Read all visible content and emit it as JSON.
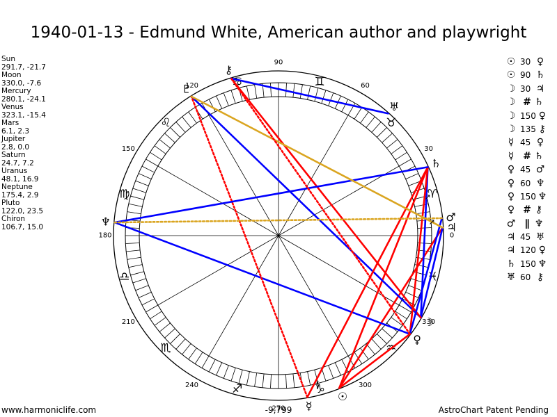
{
  "title": "1940-01-13 - Edmund White, American author and playwright",
  "planets": [
    {
      "name": "Sun",
      "value": "291.7, -21.7"
    },
    {
      "name": "Moon",
      "value": "330.0, -7.6"
    },
    {
      "name": "Mercury",
      "value": "280.1, -24.1"
    },
    {
      "name": "Venus",
      "value": "323.1, -15.4"
    },
    {
      "name": "Mars",
      "value": "6.1, 2.3"
    },
    {
      "name": "Jupiter",
      "value": "2.8, 0.0"
    },
    {
      "name": "Saturn",
      "value": "24.7, 7.2"
    },
    {
      "name": "Uranus",
      "value": "48.1, 16.9"
    },
    {
      "name": "Neptune",
      "value": "175.4, 2.9"
    },
    {
      "name": "Pluto",
      "value": "122.0, 23.5"
    },
    {
      "name": "Chiron",
      "value": "106.7, 15.0"
    }
  ],
  "aspects": [
    {
      "g1": "☉",
      "deg": "30",
      "sym": "",
      "g2": "♀"
    },
    {
      "g1": "☉",
      "deg": "90",
      "sym": "",
      "g2": "♄"
    },
    {
      "g1": "☽",
      "deg": "30",
      "sym": "",
      "g2": "♃"
    },
    {
      "g1": "☽",
      "deg": "",
      "sym": "#",
      "g2": "♄"
    },
    {
      "g1": "☽",
      "deg": "150",
      "sym": "",
      "g2": "♀"
    },
    {
      "g1": "☽",
      "deg": "135",
      "sym": "",
      "g2": "⚷"
    },
    {
      "g1": "☿",
      "deg": "45",
      "sym": "",
      "g2": "♀"
    },
    {
      "g1": "☿",
      "deg": "",
      "sym": "#",
      "g2": "♄"
    },
    {
      "g1": "♀",
      "deg": "45",
      "sym": "",
      "g2": "♂"
    },
    {
      "g1": "♀",
      "deg": "60",
      "sym": "",
      "g2": "♆"
    },
    {
      "g1": "♀",
      "deg": "150",
      "sym": "",
      "g2": "♆"
    },
    {
      "g1": "♀",
      "deg": "",
      "sym": "#",
      "g2": "⚷"
    },
    {
      "g1": "♂",
      "deg": "",
      "sym": "∥",
      "g2": "♆"
    },
    {
      "g1": "♃",
      "deg": "45",
      "sym": "",
      "g2": "♅"
    },
    {
      "g1": "♃",
      "deg": "120",
      "sym": "",
      "g2": "♀"
    },
    {
      "g1": "♄",
      "deg": "150",
      "sym": "",
      "g2": "♆"
    },
    {
      "g1": "♅",
      "deg": "60",
      "sym": "",
      "g2": "⚷"
    }
  ],
  "wheel": {
    "degree_labels": [
      "0",
      "30",
      "60",
      "90",
      "120",
      "150",
      "180",
      "210",
      "240",
      "270",
      "300",
      "330"
    ],
    "zodiac": [
      {
        "glyph": "♈",
        "icon": "aries-icon"
      },
      {
        "glyph": "♉",
        "icon": "taurus-icon"
      },
      {
        "glyph": "♊",
        "icon": "gemini-icon"
      },
      {
        "glyph": "♋",
        "icon": "cancer-icon"
      },
      {
        "glyph": "♌",
        "icon": "leo-icon"
      },
      {
        "glyph": "♍",
        "icon": "virgo-icon"
      },
      {
        "glyph": "♎",
        "icon": "libra-icon"
      },
      {
        "glyph": "♏",
        "icon": "scorpio-icon"
      },
      {
        "glyph": "♐",
        "icon": "sagittarius-icon"
      },
      {
        "glyph": "♑",
        "icon": "capricorn-icon"
      },
      {
        "glyph": "♒",
        "icon": "aquarius-icon"
      },
      {
        "glyph": "♓",
        "icon": "pisces-icon"
      }
    ],
    "bodies": [
      {
        "glyph": "☉",
        "lon": 291.7,
        "icon": "sun-icon"
      },
      {
        "glyph": "☽",
        "lon": 330.0,
        "icon": "moon-icon"
      },
      {
        "glyph": "☿",
        "lon": 280.1,
        "icon": "mercury-icon"
      },
      {
        "glyph": "♀",
        "lon": 323.1,
        "icon": "venus-icon"
      },
      {
        "glyph": "♂",
        "lon": 6.1,
        "icon": "mars-icon"
      },
      {
        "glyph": "♃",
        "lon": 2.8,
        "icon": "jupiter-icon"
      },
      {
        "glyph": "♄",
        "lon": 24.7,
        "icon": "saturn-icon"
      },
      {
        "glyph": "♅",
        "lon": 48.1,
        "icon": "uranus-icon"
      },
      {
        "glyph": "♆",
        "lon": 175.4,
        "icon": "neptune-icon"
      },
      {
        "glyph": "♇",
        "lon": 122.0,
        "icon": "pluto-icon"
      },
      {
        "glyph": "⚷",
        "lon": 106.7,
        "icon": "chiron-icon"
      }
    ],
    "axis_glyphs": [
      {
        "glyph": "↗",
        "lon": 5.0,
        "icon": "ascendant-icon"
      },
      {
        "glyph": "↗",
        "lon": 14.5,
        "icon": "node-icon"
      },
      {
        "glyph": "⚸",
        "lon": 285.0,
        "icon": "lilith-icon"
      }
    ],
    "center_label": "-9,799",
    "colors": {
      "red": "#ff0000",
      "blue": "#0000ff",
      "gold": "#daa520"
    },
    "aspect_lines": [
      {
        "from": 291.7,
        "to": 24.7,
        "color": "red",
        "style": "solid"
      },
      {
        "from": 291.7,
        "to": 2.8,
        "color": "red",
        "style": "solid"
      },
      {
        "from": 330.0,
        "to": 2.8,
        "color": "blue",
        "style": "solid"
      },
      {
        "from": 330.0,
        "to": 24.7,
        "color": "blue",
        "style": "solid"
      },
      {
        "from": 330.0,
        "to": 122.0,
        "color": "blue",
        "style": "solid"
      },
      {
        "from": 330.0,
        "to": 106.7,
        "color": "red",
        "style": "solid"
      },
      {
        "from": 323.1,
        "to": 175.4,
        "color": "blue",
        "style": "solid"
      },
      {
        "from": 323.1,
        "to": 24.7,
        "color": "red",
        "style": "solid"
      },
      {
        "from": 323.1,
        "to": 6.1,
        "color": "blue",
        "style": "solid"
      },
      {
        "from": 323.1,
        "to": 291.7,
        "color": "red",
        "style": "solid"
      },
      {
        "from": 280.1,
        "to": 24.7,
        "color": "red",
        "style": "solid"
      },
      {
        "from": 280.1,
        "to": 122.0,
        "color": "red",
        "style": "dotted"
      },
      {
        "from": 24.7,
        "to": 175.4,
        "color": "blue",
        "style": "solid"
      },
      {
        "from": 48.1,
        "to": 106.7,
        "color": "blue",
        "style": "solid"
      },
      {
        "from": 122.0,
        "to": 2.8,
        "color": "gold",
        "style": "solid"
      },
      {
        "from": 175.4,
        "to": 6.1,
        "color": "gold",
        "style": "dotted"
      },
      {
        "from": 323.1,
        "to": 106.7,
        "color": "red",
        "style": "dotted"
      }
    ]
  },
  "footer": {
    "left": "www.harmoniclife.com",
    "right": "AstroChart Patent Pending"
  }
}
